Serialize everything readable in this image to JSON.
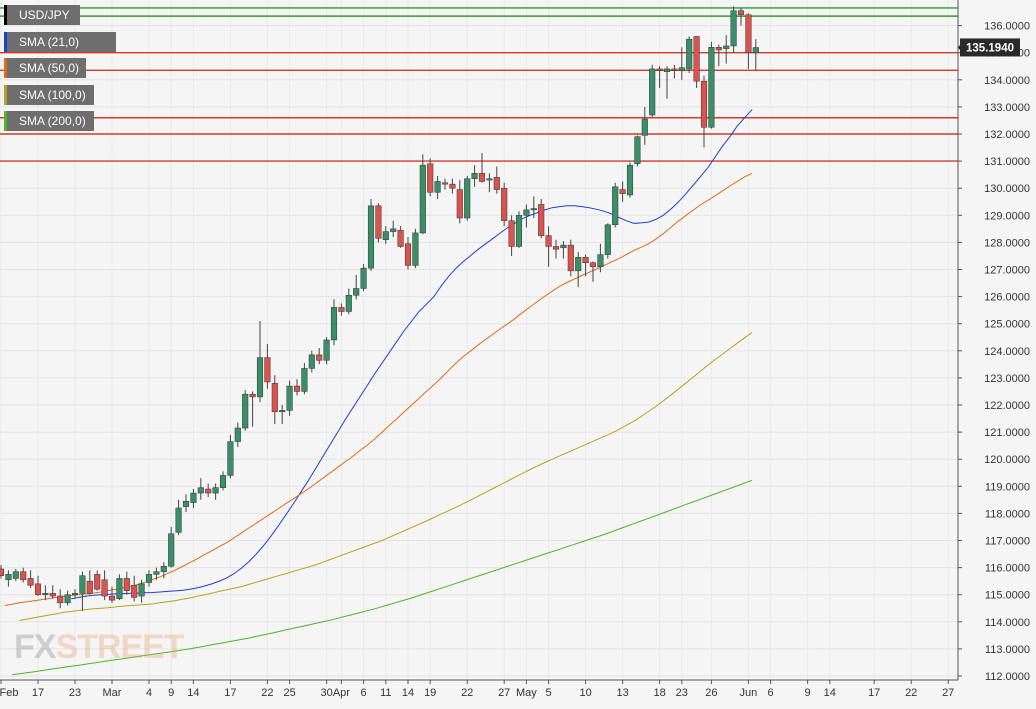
{
  "chart_data": {
    "type": "candlestick",
    "symbol": "USD/JPY",
    "last_price": "135.1940",
    "y_range": [
      112.0,
      136.7
    ],
    "y_ticks": [
      "112.0000",
      "113.0000",
      "114.0000",
      "115.0000",
      "116.0000",
      "117.0000",
      "118.0000",
      "119.0000",
      "120.0000",
      "121.0000",
      "122.0000",
      "123.0000",
      "124.0000",
      "125.0000",
      "126.0000",
      "127.0000",
      "128.0000",
      "129.0000",
      "130.0000",
      "131.0000",
      "132.0000",
      "133.0000",
      "134.0000",
      "135.0000",
      "136.0000"
    ],
    "x_ticks": [
      {
        "label": "Feb",
        "i": 0
      },
      {
        "label": "17",
        "i": 5
      },
      {
        "label": "23",
        "i": 10
      },
      {
        "label": "Mar",
        "i": 15
      },
      {
        "label": "4",
        "i": 20
      },
      {
        "label": "9",
        "i": 23
      },
      {
        "label": "14",
        "i": 26
      },
      {
        "label": "17",
        "i": 31
      },
      {
        "label": "22",
        "i": 36
      },
      {
        "label": "25",
        "i": 39
      },
      {
        "label": "30",
        "i": 44
      },
      {
        "label": "Apr",
        "i": 46
      },
      {
        "label": "6",
        "i": 49
      },
      {
        "label": "11",
        "i": 52
      },
      {
        "label": "14",
        "i": 55
      },
      {
        "label": "19",
        "i": 58
      },
      {
        "label": "22",
        "i": 63
      },
      {
        "label": "27",
        "i": 68
      },
      {
        "label": "May",
        "i": 71
      },
      {
        "label": "5",
        "i": 74
      },
      {
        "label": "10",
        "i": 79
      },
      {
        "label": "13",
        "i": 84
      },
      {
        "label": "18",
        "i": 89
      },
      {
        "label": "23",
        "i": 92
      },
      {
        "label": "26",
        "i": 96
      },
      {
        "label": "Jun",
        "i": 101
      },
      {
        "label": "6",
        "i": 104
      },
      {
        "label": "9",
        "i": 109
      },
      {
        "label": "14",
        "i": 112
      },
      {
        "label": "17",
        "i": 118
      },
      {
        "label": "22",
        "i": 123
      },
      {
        "label": "27",
        "i": 128
      }
    ],
    "horizontal_levels": [
      {
        "value": 136.65,
        "color": "#2e9e2e"
      },
      {
        "value": 136.35,
        "color": "#2e9e2e"
      },
      {
        "value": 135.0,
        "color": "#d43a2a"
      },
      {
        "value": 134.35,
        "color": "#d43a2a"
      },
      {
        "value": 132.6,
        "color": "#d43a2a"
      },
      {
        "value": 132.0,
        "color": "#d43a2a"
      },
      {
        "value": 131.0,
        "color": "#d43a2a"
      }
    ],
    "legend": [
      {
        "label": "USD/JPY",
        "color": "#000000"
      },
      {
        "label": "SMA (21,0)",
        "color": "#1f3fd1"
      },
      {
        "label": "SMA (50,0)",
        "color": "#e06b1a"
      },
      {
        "label": "SMA (100,0)",
        "color": "#b5a21e"
      },
      {
        "label": "SMA (200,0)",
        "color": "#4cb52a"
      }
    ],
    "candles": [
      {
        "o": 115.95,
        "h": 116.1,
        "l": 115.6,
        "c": 115.7
      },
      {
        "o": 115.55,
        "h": 115.9,
        "l": 115.3,
        "c": 115.75
      },
      {
        "o": 115.6,
        "h": 115.95,
        "l": 115.5,
        "c": 115.85
      },
      {
        "o": 115.85,
        "h": 116.0,
        "l": 115.45,
        "c": 115.55
      },
      {
        "o": 115.6,
        "h": 115.9,
        "l": 115.25,
        "c": 115.35
      },
      {
        "o": 115.4,
        "h": 115.7,
        "l": 114.95,
        "c": 115.0
      },
      {
        "o": 115.0,
        "h": 115.35,
        "l": 114.8,
        "c": 115.05
      },
      {
        "o": 115.05,
        "h": 115.35,
        "l": 114.85,
        "c": 114.95
      },
      {
        "o": 114.95,
        "h": 115.2,
        "l": 114.5,
        "c": 114.7
      },
      {
        "o": 114.7,
        "h": 115.15,
        "l": 114.6,
        "c": 115.0
      },
      {
        "o": 115.0,
        "h": 115.2,
        "l": 114.85,
        "c": 115.05
      },
      {
        "o": 115.05,
        "h": 115.85,
        "l": 114.4,
        "c": 115.7
      },
      {
        "o": 115.5,
        "h": 115.9,
        "l": 115.0,
        "c": 115.05
      },
      {
        "o": 115.75,
        "h": 115.9,
        "l": 115.15,
        "c": 115.2
      },
      {
        "o": 115.55,
        "h": 115.9,
        "l": 114.8,
        "c": 114.95
      },
      {
        "o": 114.95,
        "h": 115.3,
        "l": 114.7,
        "c": 114.8
      },
      {
        "o": 114.85,
        "h": 115.75,
        "l": 114.8,
        "c": 115.6
      },
      {
        "o": 115.6,
        "h": 115.85,
        "l": 115.0,
        "c": 115.15
      },
      {
        "o": 115.35,
        "h": 115.7,
        "l": 114.75,
        "c": 114.9
      },
      {
        "o": 114.95,
        "h": 115.55,
        "l": 114.7,
        "c": 115.4
      },
      {
        "o": 115.45,
        "h": 115.9,
        "l": 115.3,
        "c": 115.75
      },
      {
        "o": 115.75,
        "h": 116.0,
        "l": 115.55,
        "c": 115.85
      },
      {
        "o": 115.85,
        "h": 116.2,
        "l": 115.6,
        "c": 116.05
      },
      {
        "o": 116.05,
        "h": 117.5,
        "l": 116.0,
        "c": 117.25
      },
      {
        "o": 117.3,
        "h": 118.5,
        "l": 117.2,
        "c": 118.2
      },
      {
        "o": 118.25,
        "h": 118.7,
        "l": 118.05,
        "c": 118.45
      },
      {
        "o": 118.4,
        "h": 118.9,
        "l": 118.2,
        "c": 118.75
      },
      {
        "o": 118.75,
        "h": 119.3,
        "l": 118.5,
        "c": 118.95
      },
      {
        "o": 118.9,
        "h": 119.1,
        "l": 118.6,
        "c": 118.75
      },
      {
        "o": 118.75,
        "h": 119.1,
        "l": 118.5,
        "c": 118.95
      },
      {
        "o": 118.95,
        "h": 119.55,
        "l": 118.85,
        "c": 119.4
      },
      {
        "o": 119.4,
        "h": 120.9,
        "l": 119.3,
        "c": 120.65
      },
      {
        "o": 120.65,
        "h": 121.35,
        "l": 120.45,
        "c": 121.15
      },
      {
        "o": 121.15,
        "h": 122.55,
        "l": 121.05,
        "c": 122.4
      },
      {
        "o": 122.4,
        "h": 122.5,
        "l": 121.2,
        "c": 122.3
      },
      {
        "o": 122.3,
        "h": 125.1,
        "l": 122.1,
        "c": 123.75
      },
      {
        "o": 123.75,
        "h": 124.25,
        "l": 122.6,
        "c": 122.85
      },
      {
        "o": 122.8,
        "h": 123.1,
        "l": 121.3,
        "c": 121.75
      },
      {
        "o": 121.75,
        "h": 122.0,
        "l": 121.3,
        "c": 121.8
      },
      {
        "o": 121.8,
        "h": 122.9,
        "l": 121.6,
        "c": 122.7
      },
      {
        "o": 122.7,
        "h": 122.95,
        "l": 122.35,
        "c": 122.5
      },
      {
        "o": 122.5,
        "h": 123.55,
        "l": 122.4,
        "c": 123.35
      },
      {
        "o": 123.35,
        "h": 124.0,
        "l": 123.2,
        "c": 123.85
      },
      {
        "o": 123.85,
        "h": 124.1,
        "l": 123.5,
        "c": 123.65
      },
      {
        "o": 123.65,
        "h": 124.5,
        "l": 123.5,
        "c": 124.4
      },
      {
        "o": 124.4,
        "h": 125.9,
        "l": 124.2,
        "c": 125.6
      },
      {
        "o": 125.6,
        "h": 125.75,
        "l": 125.3,
        "c": 125.45
      },
      {
        "o": 125.45,
        "h": 126.3,
        "l": 125.35,
        "c": 126.05
      },
      {
        "o": 126.05,
        "h": 126.8,
        "l": 125.9,
        "c": 126.3
      },
      {
        "o": 126.3,
        "h": 127.2,
        "l": 126.2,
        "c": 127.05
      },
      {
        "o": 127.05,
        "h": 129.6,
        "l": 126.95,
        "c": 129.35
      },
      {
        "o": 129.35,
        "h": 129.45,
        "l": 128.0,
        "c": 128.15
      },
      {
        "o": 128.1,
        "h": 128.6,
        "l": 127.95,
        "c": 128.4
      },
      {
        "o": 128.4,
        "h": 128.8,
        "l": 128.2,
        "c": 128.5
      },
      {
        "o": 128.45,
        "h": 128.6,
        "l": 127.8,
        "c": 127.85
      },
      {
        "o": 127.95,
        "h": 128.2,
        "l": 127.0,
        "c": 127.15
      },
      {
        "o": 127.15,
        "h": 128.5,
        "l": 127.05,
        "c": 128.35
      },
      {
        "o": 128.35,
        "h": 131.25,
        "l": 128.3,
        "c": 130.85
      },
      {
        "o": 130.9,
        "h": 131.1,
        "l": 129.7,
        "c": 129.85
      },
      {
        "o": 129.85,
        "h": 130.45,
        "l": 129.6,
        "c": 130.25
      },
      {
        "o": 130.2,
        "h": 130.35,
        "l": 129.95,
        "c": 130.15
      },
      {
        "o": 130.15,
        "h": 130.35,
        "l": 129.8,
        "c": 130.0
      },
      {
        "o": 129.95,
        "h": 130.3,
        "l": 128.7,
        "c": 128.9
      },
      {
        "o": 128.9,
        "h": 130.45,
        "l": 128.8,
        "c": 130.35
      },
      {
        "o": 130.35,
        "h": 130.85,
        "l": 130.05,
        "c": 130.55
      },
      {
        "o": 130.55,
        "h": 131.3,
        "l": 130.2,
        "c": 130.25
      },
      {
        "o": 130.3,
        "h": 130.55,
        "l": 129.85,
        "c": 130.35
      },
      {
        "o": 130.4,
        "h": 130.8,
        "l": 129.8,
        "c": 129.95
      },
      {
        "o": 130.0,
        "h": 130.2,
        "l": 128.6,
        "c": 128.8
      },
      {
        "o": 128.8,
        "h": 129.0,
        "l": 127.5,
        "c": 127.85
      },
      {
        "o": 127.85,
        "h": 129.15,
        "l": 127.8,
        "c": 129.0
      },
      {
        "o": 129.0,
        "h": 129.4,
        "l": 128.55,
        "c": 129.2
      },
      {
        "o": 129.2,
        "h": 129.7,
        "l": 128.9,
        "c": 129.25
      },
      {
        "o": 129.4,
        "h": 129.6,
        "l": 128.15,
        "c": 128.25
      },
      {
        "o": 128.25,
        "h": 128.6,
        "l": 127.1,
        "c": 127.85
      },
      {
        "o": 127.85,
        "h": 128.1,
        "l": 127.4,
        "c": 127.75
      },
      {
        "o": 127.8,
        "h": 128.05,
        "l": 127.4,
        "c": 127.9
      },
      {
        "o": 127.9,
        "h": 128.1,
        "l": 126.75,
        "c": 126.95
      },
      {
        "o": 126.95,
        "h": 127.65,
        "l": 126.35,
        "c": 127.45
      },
      {
        "o": 127.45,
        "h": 127.55,
        "l": 126.75,
        "c": 127.25
      },
      {
        "o": 127.25,
        "h": 127.3,
        "l": 126.55,
        "c": 127.1
      },
      {
        "o": 127.1,
        "h": 127.95,
        "l": 126.9,
        "c": 127.55
      },
      {
        "o": 127.55,
        "h": 128.7,
        "l": 127.4,
        "c": 128.65
      },
      {
        "o": 128.65,
        "h": 130.2,
        "l": 128.55,
        "c": 130.05
      },
      {
        "o": 129.95,
        "h": 130.25,
        "l": 129.5,
        "c": 129.8
      },
      {
        "o": 129.75,
        "h": 130.95,
        "l": 129.65,
        "c": 130.85
      },
      {
        "o": 130.9,
        "h": 131.95,
        "l": 130.8,
        "c": 131.9
      },
      {
        "o": 131.95,
        "h": 133.0,
        "l": 131.6,
        "c": 132.55
      },
      {
        "o": 132.7,
        "h": 134.55,
        "l": 132.6,
        "c": 134.4
      },
      {
        "o": 134.4,
        "h": 134.5,
        "l": 133.7,
        "c": 134.35
      },
      {
        "o": 134.3,
        "h": 134.5,
        "l": 133.3,
        "c": 134.4
      },
      {
        "o": 134.4,
        "h": 134.55,
        "l": 134.05,
        "c": 134.35
      },
      {
        "o": 134.35,
        "h": 135.2,
        "l": 134.0,
        "c": 134.45
      },
      {
        "o": 134.4,
        "h": 135.6,
        "l": 134.25,
        "c": 135.5
      },
      {
        "o": 135.6,
        "h": 135.6,
        "l": 133.7,
        "c": 133.95
      },
      {
        "o": 133.95,
        "h": 134.15,
        "l": 131.5,
        "c": 132.25
      },
      {
        "o": 132.25,
        "h": 135.4,
        "l": 132.2,
        "c": 135.2
      },
      {
        "o": 135.2,
        "h": 135.3,
        "l": 134.5,
        "c": 135.1
      },
      {
        "o": 135.15,
        "h": 135.65,
        "l": 134.6,
        "c": 135.25
      },
      {
        "o": 135.25,
        "h": 136.71,
        "l": 135.0,
        "c": 136.55
      },
      {
        "o": 136.55,
        "h": 136.65,
        "l": 136.0,
        "c": 136.4
      },
      {
        "o": 136.4,
        "h": 136.45,
        "l": 134.4,
        "c": 135.0
      },
      {
        "o": 135.0,
        "h": 135.5,
        "l": 134.35,
        "c": 135.19
      }
    ],
    "sma_21": [
      114.85,
      114.9,
      114.95,
      114.98,
      115.0,
      115.02,
      115.03,
      115.04,
      115.05,
      115.06,
      115.07,
      115.08,
      115.1,
      115.12,
      115.14,
      115.16,
      115.2,
      115.25,
      115.32,
      115.4,
      115.5,
      115.62,
      115.78,
      115.98,
      116.22,
      116.5,
      116.82,
      117.17,
      117.55,
      117.95,
      118.35,
      118.78,
      119.2,
      119.65,
      120.1,
      120.55,
      121.0,
      121.45,
      121.88,
      122.3,
      122.72,
      123.15,
      123.55,
      123.95,
      124.35,
      124.75,
      125.1,
      125.45,
      125.72,
      126.0,
      126.4,
      126.75,
      127.05,
      127.3,
      127.52,
      127.75,
      127.95,
      128.15,
      128.35,
      128.55,
      128.72,
      128.88,
      129.0,
      129.1,
      129.2,
      129.28,
      129.32,
      129.35,
      129.35,
      129.32,
      129.28,
      129.22,
      129.15,
      129.05,
      128.92,
      128.8,
      128.7,
      128.72,
      128.75,
      128.85,
      129.0,
      129.22,
      129.48,
      129.78,
      130.1,
      130.42,
      130.75,
      131.15,
      131.55,
      131.9,
      132.3,
      132.6,
      132.9
    ],
    "sma_50": [
      114.6,
      114.65,
      114.7,
      114.74,
      114.78,
      114.82,
      114.86,
      114.9,
      114.94,
      114.97,
      115.0,
      115.03,
      115.06,
      115.1,
      115.15,
      115.2,
      115.25,
      115.3,
      115.38,
      115.46,
      115.56,
      115.66,
      115.78,
      115.9,
      116.04,
      116.18,
      116.32,
      116.48,
      116.62,
      116.78,
      116.92,
      117.1,
      117.28,
      117.46,
      117.64,
      117.82,
      118.0,
      118.18,
      118.36,
      118.54,
      118.72,
      118.9,
      119.1,
      119.3,
      119.5,
      119.7,
      119.9,
      120.1,
      120.32,
      120.52,
      120.75,
      121.0,
      121.25,
      121.5,
      121.75,
      122.0,
      122.25,
      122.5,
      122.75,
      123.0,
      123.28,
      123.55,
      123.8,
      124.0,
      124.22,
      124.42,
      124.62,
      124.82,
      125.0,
      125.2,
      125.42,
      125.62,
      125.82,
      126.02,
      126.2,
      126.38,
      126.52,
      126.65,
      126.78,
      126.9,
      127.02,
      127.15,
      127.28,
      127.4,
      127.55,
      127.7,
      127.82,
      127.95,
      128.12,
      128.32,
      128.55,
      128.78,
      128.98,
      129.18,
      129.38,
      129.55,
      129.72,
      129.9,
      130.08,
      130.25,
      130.42,
      130.55
    ],
    "sma_100": [
      114.05,
      114.1,
      114.15,
      114.2,
      114.25,
      114.3,
      114.35,
      114.38,
      114.42,
      114.45,
      114.48,
      114.5,
      114.52,
      114.55,
      114.58,
      114.6,
      114.62,
      114.64,
      114.66,
      114.7,
      114.74,
      114.78,
      114.83,
      114.88,
      114.94,
      115.0,
      115.06,
      115.12,
      115.18,
      115.24,
      115.3,
      115.38,
      115.46,
      115.54,
      115.62,
      115.7,
      115.78,
      115.86,
      115.94,
      116.02,
      116.1,
      116.2,
      116.3,
      116.4,
      116.5,
      116.6,
      116.7,
      116.8,
      116.9,
      117.0,
      117.12,
      117.24,
      117.36,
      117.48,
      117.6,
      117.72,
      117.85,
      117.98,
      118.1,
      118.23,
      118.36,
      118.5,
      118.64,
      118.78,
      118.92,
      119.06,
      119.2,
      119.34,
      119.48,
      119.62,
      119.75,
      119.88,
      120.0,
      120.12,
      120.24,
      120.36,
      120.48,
      120.6,
      120.72,
      120.84,
      120.96,
      121.1,
      121.25,
      121.4,
      121.58,
      121.76,
      121.95,
      122.15,
      122.36,
      122.58,
      122.8,
      123.02,
      123.24,
      123.46,
      123.68,
      123.88,
      124.08,
      124.28,
      124.48,
      124.68
    ],
    "sma_200": [
      112.05,
      112.08,
      112.12,
      112.16,
      112.2,
      112.24,
      112.28,
      112.32,
      112.36,
      112.4,
      112.44,
      112.48,
      112.52,
      112.56,
      112.6,
      112.64,
      112.68,
      112.72,
      112.76,
      112.8,
      112.84,
      112.88,
      112.92,
      112.96,
      113.0,
      113.05,
      113.1,
      113.15,
      113.2,
      113.25,
      113.3,
      113.35,
      113.4,
      113.46,
      113.52,
      113.58,
      113.64,
      113.7,
      113.76,
      113.82,
      113.88,
      113.94,
      114.0,
      114.06,
      114.13,
      114.2,
      114.27,
      114.34,
      114.41,
      114.48,
      114.56,
      114.64,
      114.72,
      114.8,
      114.88,
      114.97,
      115.06,
      115.15,
      115.24,
      115.33,
      115.42,
      115.51,
      115.6,
      115.69,
      115.78,
      115.87,
      115.96,
      116.05,
      116.14,
      116.23,
      116.32,
      116.41,
      116.5,
      116.59,
      116.68,
      116.77,
      116.86,
      116.95,
      117.04,
      117.13,
      117.22,
      117.32,
      117.42,
      117.52,
      117.62,
      117.72,
      117.82,
      117.92,
      118.02,
      118.12,
      118.22,
      118.32,
      118.42,
      118.52,
      118.62,
      118.72,
      118.82,
      118.92,
      119.02,
      119.12,
      119.22
    ]
  },
  "brand": {
    "logo_text": "FXSTREET",
    "logo_fx": "FX",
    "logo_street": "STREET"
  }
}
